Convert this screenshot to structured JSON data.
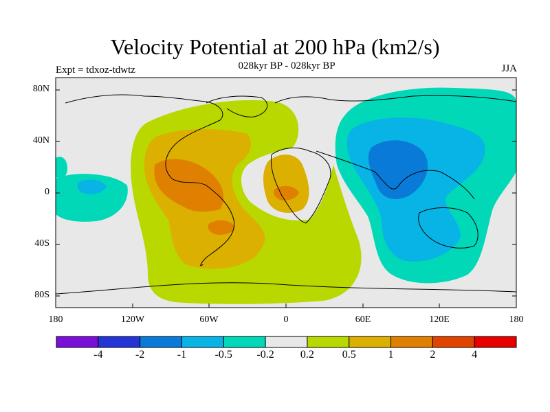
{
  "title": "Velocity Potential at 200 hPa (km2/s)",
  "subtitle": "028kyr BP - 028kyr BP",
  "left_label": "Expt = tdxoz-tdwtz",
  "right_label": "JJA",
  "lat_ticks": [
    "80N",
    "40N",
    "0",
    "40S",
    "80S"
  ],
  "lon_ticks": [
    "180",
    "120W",
    "60W",
    "0",
    "60E",
    "120E",
    "180"
  ],
  "colorbar": {
    "colors": [
      "#7a10d8",
      "#2434d6",
      "#0a7ad8",
      "#08b4e6",
      "#00d8b8",
      "#e8e8e8",
      "#b8d800",
      "#dcb000",
      "#e08000",
      "#e04400",
      "#e80000"
    ],
    "labels": [
      "-4",
      "-2",
      "-1",
      "-0.5",
      "-0.2",
      "0.2",
      "0.5",
      "1",
      "2",
      "4"
    ]
  },
  "map_colors": {
    "ocean": "#e8e8e8",
    "pos1": "#b8d800",
    "pos2": "#dcb000",
    "pos3": "#e08000",
    "neg1": "#00d8b8",
    "neg2": "#08b4e6",
    "neg3": "#0a7ad8"
  }
}
